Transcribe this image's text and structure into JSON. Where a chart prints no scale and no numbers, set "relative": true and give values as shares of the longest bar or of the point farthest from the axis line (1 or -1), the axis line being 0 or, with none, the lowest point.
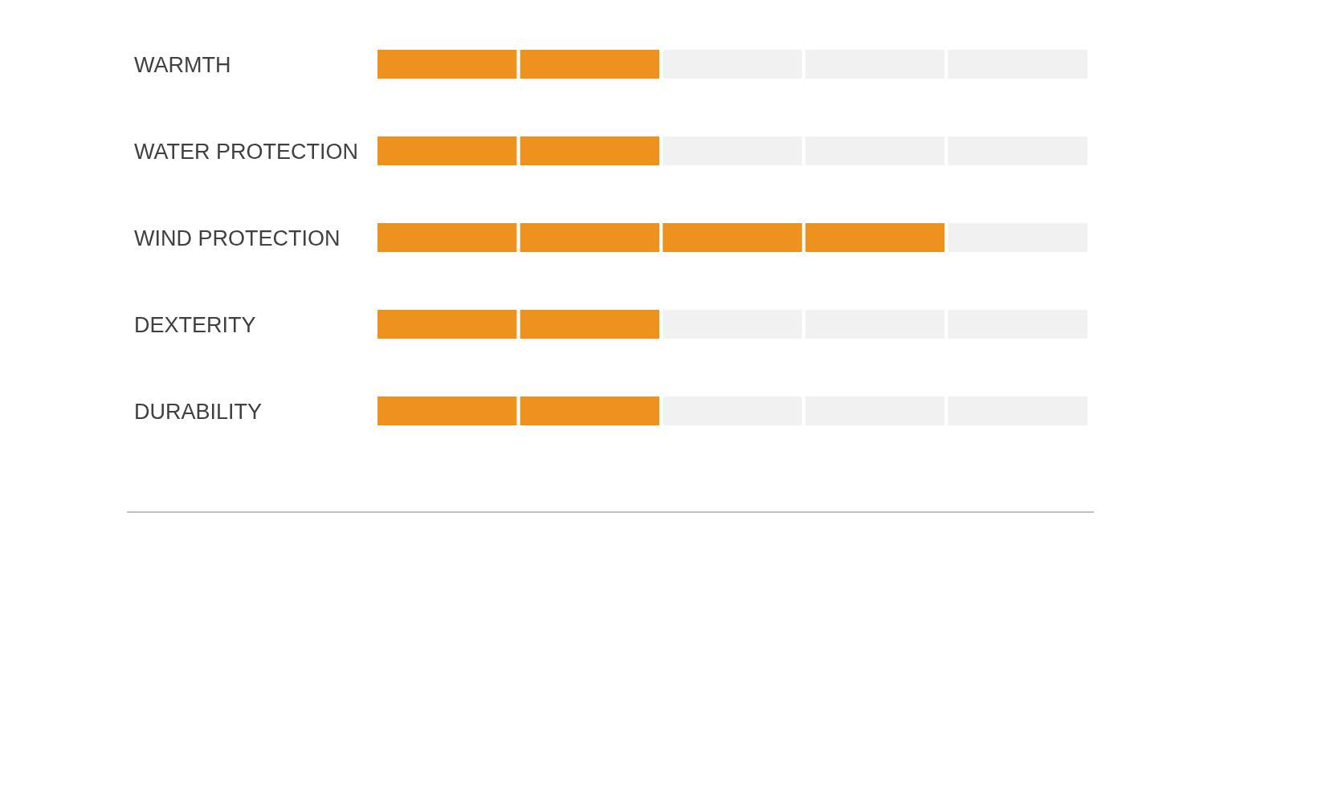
{
  "chart_data": {
    "type": "bar",
    "orientation": "horizontal",
    "stacked": true,
    "relative": true,
    "categories": [
      "WARMTH",
      "WATER PROTECTION",
      "WIND PROTECTION",
      "DEXTERITY",
      "DURABILITY"
    ],
    "series": [
      {
        "color": "#ee921f",
        "values": [
          0.2,
          0.2,
          0.2,
          0.2,
          0.2
        ]
      },
      {
        "color": "#ee921f",
        "values": [
          0.2,
          0.2,
          0.2,
          0.2,
          0.2
        ]
      },
      {
        "colors": [
          "#f1f1f1",
          "#f1f1f1",
          "#ee921f",
          "#f1f1f1",
          "#f1f1f1"
        ],
        "values": [
          0.2,
          0.2,
          0.2,
          0.2,
          0.2
        ]
      },
      {
        "colors": [
          "#f1f1f1",
          "#f1f1f1",
          "#ee921f",
          "#f1f1f1",
          "#f1f1f1"
        ],
        "values": [
          0.2,
          0.2,
          0.2,
          0.2,
          0.2
        ]
      },
      {
        "color": "#f1f1f1",
        "values": [
          0.2,
          0.2,
          0.2,
          0.2,
          0.2
        ]
      }
    ]
  }
}
